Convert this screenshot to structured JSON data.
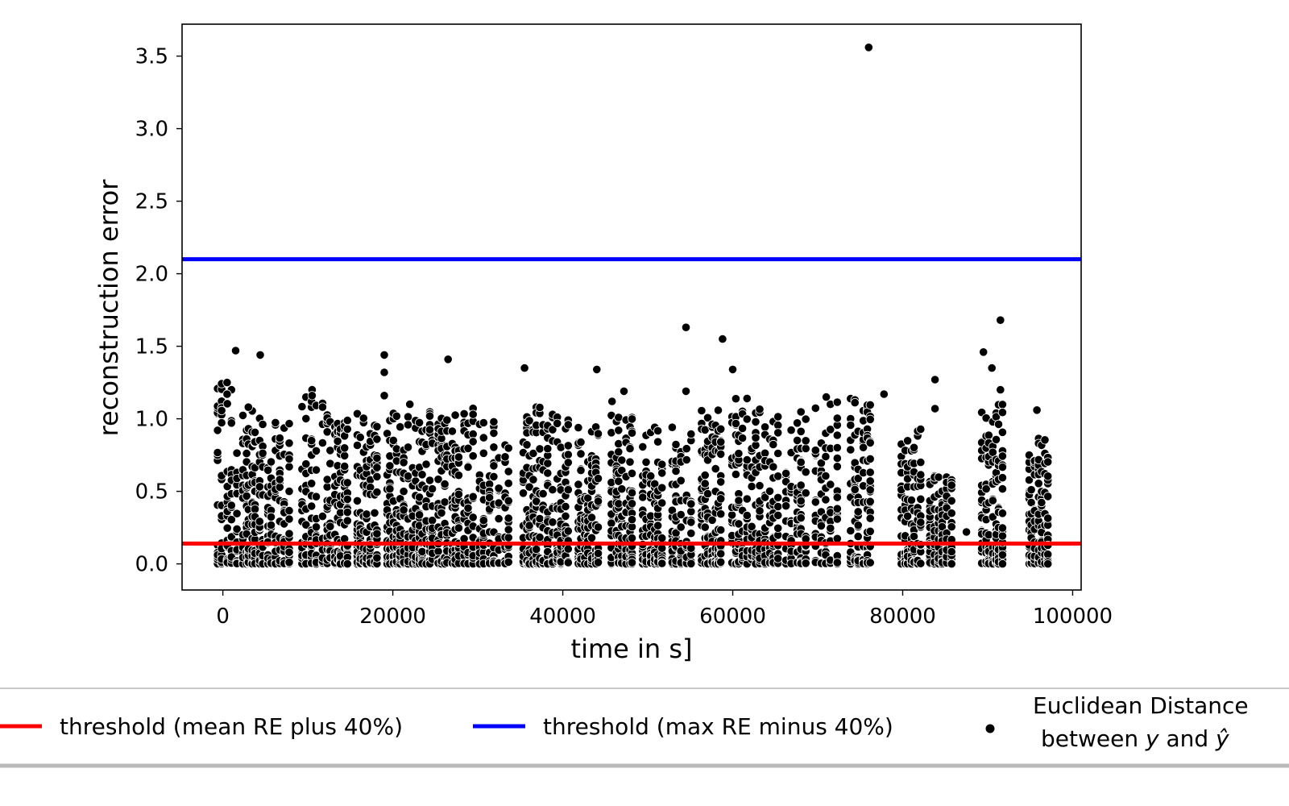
{
  "chart_data": {
    "type": "scatter",
    "xlabel": "time in s]",
    "ylabel": "reconstruction error",
    "xlim": [
      -4800,
      101000
    ],
    "ylim": [
      -0.18,
      3.72
    ],
    "xticks": [
      0,
      20000,
      40000,
      60000,
      80000,
      100000
    ],
    "xtick_labels": [
      "0",
      "20000",
      "40000",
      "60000",
      "80000",
      "100000"
    ],
    "yticks": [
      0.0,
      0.5,
      1.0,
      1.5,
      2.0,
      2.5,
      3.0,
      3.5
    ],
    "ytick_labels": [
      "0.0",
      "0.5",
      "1.0",
      "1.5",
      "2.0",
      "2.5",
      "3.0",
      "3.5"
    ],
    "grid": false,
    "legend_position": "bottom, below plot",
    "thresholds": [
      {
        "name": "threshold (mean RE plus 40%)",
        "y": 0.14,
        "color": "#ff0000"
      },
      {
        "name": "threshold (max RE minus 40%)",
        "y": 2.1,
        "color": "#0000ff"
      }
    ],
    "scatter_series": {
      "name_line1": "Euclidean Distance",
      "name_line2_pre": "between ",
      "name_line2_y": "y",
      "name_line2_mid": " and ",
      "name_line2_yhat": "ŷ",
      "color": "#000000",
      "edgecolor": "#ffffff"
    },
    "clusters": [
      {
        "x": 500,
        "ymax": 1.25,
        "highs": [
          [
            500,
            1.25
          ],
          [
            500,
            1.17
          ],
          [
            1500,
            1.47
          ]
        ]
      },
      {
        "x": 3500,
        "ymax": 1.07,
        "highs": [
          [
            4400,
            1.44
          ],
          [
            3000,
            1.08
          ]
        ]
      },
      {
        "x": 6500,
        "ymax": 0.99,
        "highs": []
      },
      {
        "x": 10500,
        "ymax": 1.18,
        "highs": [
          [
            10500,
            1.2
          ],
          [
            10500,
            1.16
          ]
        ]
      },
      {
        "x": 13500,
        "ymax": 1.08,
        "highs": []
      },
      {
        "x": 17000,
        "ymax": 1.07,
        "highs": [
          [
            19000,
            1.44
          ],
          [
            19000,
            1.32
          ],
          [
            19000,
            1.16
          ]
        ]
      },
      {
        "x": 20500,
        "ymax": 1.05,
        "highs": [
          [
            22000,
            1.1
          ]
        ]
      },
      {
        "x": 23500,
        "ymax": 1.05,
        "highs": [
          [
            26500,
            1.41
          ]
        ]
      },
      {
        "x": 26500,
        "ymax": 1.03,
        "highs": []
      },
      {
        "x": 29500,
        "ymax": 1.09,
        "highs": []
      },
      {
        "x": 32500,
        "ymax": 0.98,
        "highs": [
          [
            35500,
            1.35
          ]
        ]
      },
      {
        "x": 36500,
        "ymax": 1.08,
        "highs": []
      },
      {
        "x": 39500,
        "ymax": 1.08,
        "highs": [
          [
            44000,
            1.34
          ]
        ]
      },
      {
        "x": 43000,
        "ymax": 0.95,
        "highs": [
          [
            45800,
            1.12
          ],
          [
            47200,
            1.19
          ]
        ]
      },
      {
        "x": 47000,
        "ymax": 1.05,
        "highs": []
      },
      {
        "x": 50500,
        "ymax": 0.95,
        "highs": []
      },
      {
        "x": 54000,
        "ymax": 0.95,
        "highs": [
          [
            54500,
            1.63
          ],
          [
            54500,
            1.19
          ]
        ]
      },
      {
        "x": 57500,
        "ymax": 1.08,
        "highs": [
          [
            58800,
            1.55
          ],
          [
            60000,
            1.34
          ]
        ]
      },
      {
        "x": 61000,
        "ymax": 1.15,
        "highs": []
      },
      {
        "x": 64000,
        "ymax": 1.08,
        "highs": []
      },
      {
        "x": 67500,
        "ymax": 1.05,
        "highs": []
      },
      {
        "x": 71000,
        "ymax": 1.15,
        "highs": [
          [
            71000,
            1.15
          ]
        ]
      },
      {
        "x": 75000,
        "ymax": 1.15,
        "highs": [
          [
            76000,
            3.56
          ],
          [
            77800,
            1.17
          ]
        ]
      },
      {
        "x": 81000,
        "ymax": 0.93,
        "highs": [
          [
            83800,
            1.27
          ],
          [
            83800,
            1.07
          ]
        ]
      },
      {
        "x": 84500,
        "ymax": 0.63,
        "highs": [
          [
            87500,
            0.22
          ]
        ]
      },
      {
        "x": 90500,
        "ymax": 1.1,
        "highs": [
          [
            89500,
            1.46
          ],
          [
            91500,
            1.68
          ],
          [
            90500,
            1.35
          ],
          [
            91500,
            1.2
          ]
        ]
      },
      {
        "x": 96000,
        "ymax": 0.87,
        "highs": [
          [
            95800,
            1.06
          ]
        ]
      }
    ]
  }
}
